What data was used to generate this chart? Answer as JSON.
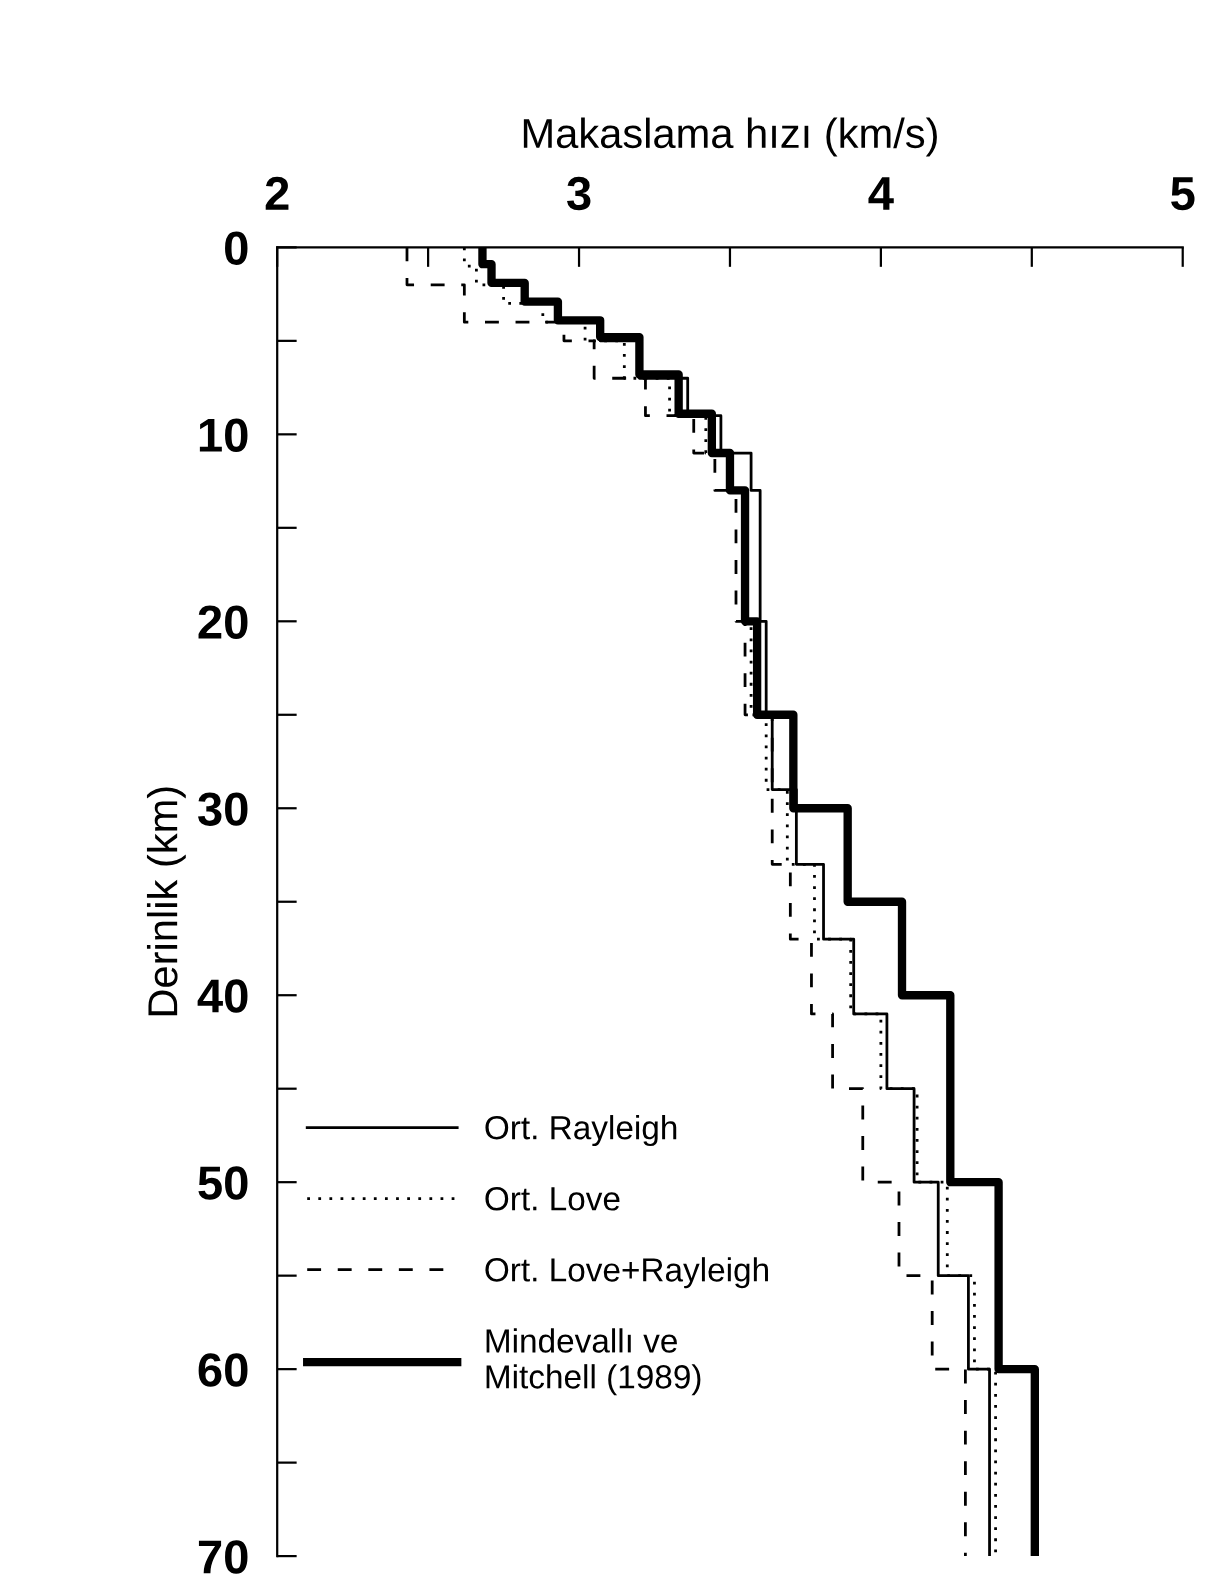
{
  "chart_data": {
    "type": "step",
    "xlabel": "Makaslama hızı (km/s)",
    "ylabel": "Derinlik (km)",
    "xlim": [
      2,
      5
    ],
    "xticks": [
      2,
      {
        "value": 2.5,
        "label": null
      },
      3,
      {
        "value": 3.5,
        "label": null
      },
      4,
      {
        "value": 4.5,
        "label": null
      },
      5
    ],
    "ylim": [
      70,
      0
    ],
    "yticks": [
      0,
      {
        "value": 5,
        "label": null
      },
      10,
      {
        "value": 15,
        "label": null
      },
      20,
      {
        "value": 25,
        "label": null
      },
      30,
      {
        "value": 35,
        "label": null
      },
      40,
      {
        "value": 45,
        "label": null
      },
      50,
      {
        "value": 55,
        "label": null
      },
      60,
      {
        "value": 65,
        "label": null
      },
      70
    ],
    "grid": false,
    "legend": "bottom left",
    "series": [
      {
        "name": "Ort. Rayleigh",
        "color": "#000000",
        "line_style": "solid",
        "x": [
          2.68,
          2.68,
          2.71,
          2.82,
          2.93,
          3.07,
          3.2,
          3.36,
          3.47,
          3.57,
          3.6,
          3.62,
          3.64,
          3.72,
          3.81,
          3.91,
          4.02,
          4.11,
          4.19,
          4.29,
          4.36
        ],
        "values": [
          0,
          1,
          2,
          3,
          4,
          5,
          7,
          9,
          11,
          13,
          20,
          25,
          29,
          33,
          37,
          41,
          45,
          50,
          55,
          60,
          70
        ]
      },
      {
        "name": "Ort. Love",
        "color": "#000000",
        "line_style": "dotted",
        "x": [
          2.62,
          2.62,
          2.66,
          2.75,
          2.88,
          3.02,
          3.15,
          3.3,
          3.42,
          3.5,
          3.55,
          3.57,
          3.62,
          3.69,
          3.78,
          3.9,
          4.0,
          4.12,
          4.22,
          4.31,
          4.38
        ],
        "values": [
          0,
          1,
          2,
          3,
          4,
          5,
          7,
          9,
          11,
          13,
          20,
          25,
          29,
          33,
          37,
          41,
          45,
          50,
          55,
          60,
          70
        ]
      },
      {
        "name": "Ort. Love+Rayleigh",
        "color": "#000000",
        "line_style": "dashed",
        "x": [
          2.43,
          2.43,
          2.62,
          2.95,
          3.05,
          3.22,
          3.38,
          3.45,
          3.52,
          3.55,
          3.64,
          3.7,
          3.77,
          3.84,
          3.94,
          4.06,
          4.17,
          4.28
        ],
        "values": [
          0,
          2,
          4,
          5,
          7,
          9,
          11,
          13,
          20,
          25,
          33,
          37,
          41,
          45,
          50,
          55,
          60,
          70
        ]
      },
      {
        "name": "Mindevallı ve\nMitchell (1989)",
        "color": "#000000",
        "line_style": "solid",
        "x": [
          2.68,
          2.68,
          2.71,
          2.82,
          2.93,
          3.07,
          3.2,
          3.33,
          3.44,
          3.5,
          3.55,
          3.59,
          3.71,
          3.89,
          4.07,
          4.23,
          4.39,
          4.51
        ],
        "values": [
          0,
          0.9,
          1.9,
          2.9,
          3.9,
          4.8,
          6.8,
          8.9,
          11,
          13,
          20,
          25,
          30,
          35,
          40,
          50,
          60,
          70
        ]
      }
    ]
  }
}
